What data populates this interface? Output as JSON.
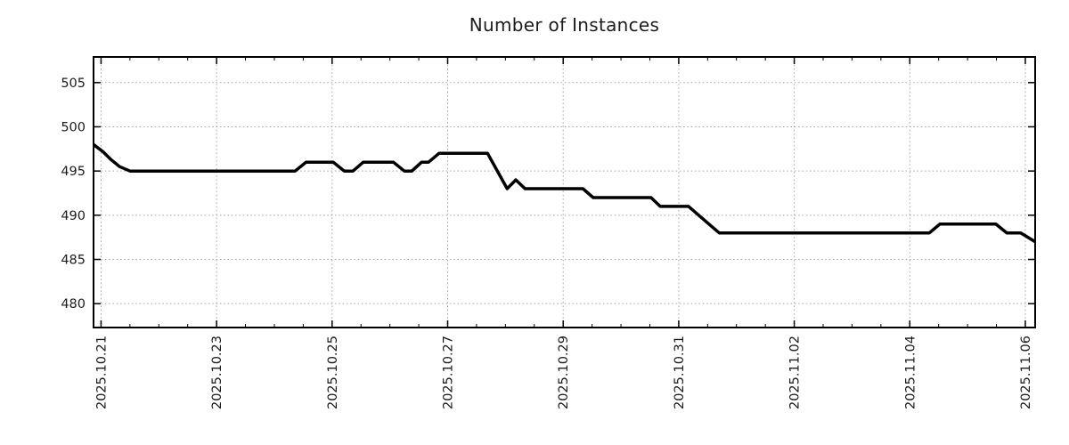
{
  "chart_data": {
    "type": "line",
    "title": "Number of Instances",
    "grid": "dotted-major",
    "legend": null,
    "background_color": "#ffffff",
    "grid_color": "#a3a3a3",
    "axis_color": "#000000",
    "text_color": "#1c1c1c",
    "x_axis": {
      "unit": "date",
      "tick_labels": [
        "2025.10.21",
        "2025.10.23",
        "2025.10.25",
        "2025.10.27",
        "2025.10.29",
        "2025.10.31",
        "2025.11.02",
        "2025.11.04",
        "2025.11.06"
      ],
      "tick_days": [
        0,
        2,
        4,
        6,
        8,
        10,
        12,
        14,
        16
      ],
      "minor_tick_interval_days": 0.5,
      "range_days": [
        -0.13,
        16.17
      ],
      "label_rotation_deg": -90
    },
    "y_axis": {
      "ticks": [
        480,
        485,
        490,
        495,
        500,
        505
      ],
      "range": [
        477.3,
        507.9
      ]
    },
    "series": [
      {
        "name": "Number of Instances",
        "color": "#000000",
        "line_width": 3.5,
        "points_days_value": [
          [
            -0.13,
            498.0
          ],
          [
            0.03,
            497.2
          ],
          [
            0.17,
            496.3
          ],
          [
            0.32,
            495.5
          ],
          [
            0.5,
            495
          ],
          [
            3.36,
            495
          ],
          [
            3.55,
            496
          ],
          [
            4.02,
            496
          ],
          [
            4.21,
            495
          ],
          [
            4.36,
            495
          ],
          [
            4.54,
            496
          ],
          [
            5.06,
            496
          ],
          [
            5.25,
            495
          ],
          [
            5.38,
            495
          ],
          [
            5.55,
            496
          ],
          [
            5.67,
            496
          ],
          [
            5.85,
            497
          ],
          [
            6.69,
            497
          ],
          [
            7.03,
            493
          ],
          [
            7.18,
            494
          ],
          [
            7.34,
            493
          ],
          [
            8.34,
            493
          ],
          [
            8.52,
            492
          ],
          [
            9.52,
            492
          ],
          [
            9.68,
            491
          ],
          [
            10.17,
            491
          ],
          [
            10.7,
            488
          ],
          [
            14.34,
            488
          ],
          [
            14.52,
            489
          ],
          [
            15.49,
            489
          ],
          [
            15.68,
            488
          ],
          [
            15.92,
            488
          ],
          [
            16.17,
            487
          ]
        ]
      }
    ]
  }
}
